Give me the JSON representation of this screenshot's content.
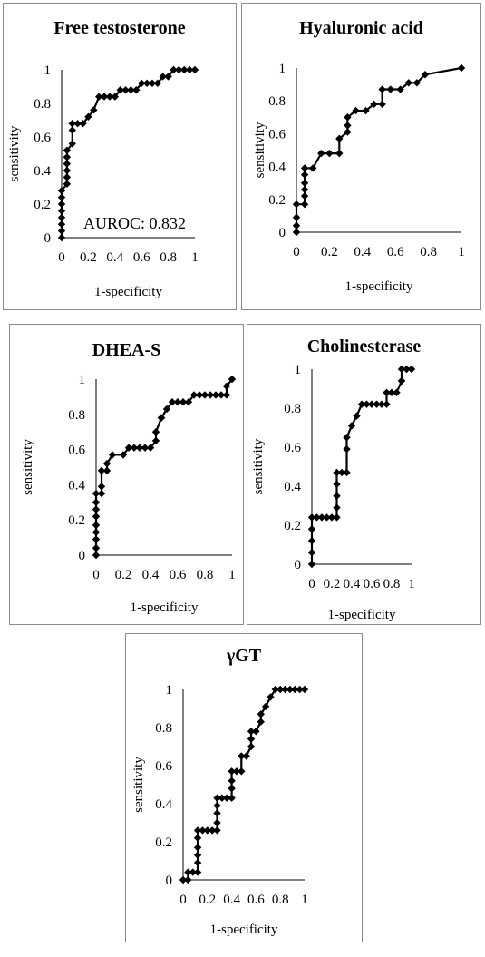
{
  "chart_data": [
    {
      "type": "line",
      "title": "Free testosterone",
      "xlabel": "1-specificity",
      "ylabel": "sensitivity",
      "xlim": [
        0,
        1
      ],
      "ylim": [
        0,
        1
      ],
      "xticks": [
        "0",
        "0.2",
        "0.4",
        "0.6",
        "0.8",
        "1"
      ],
      "yticks": [
        "0",
        "0.2",
        "0.4",
        "0.6",
        "0.8",
        "1"
      ],
      "annotation": "AUROC: 0.832",
      "grid": false,
      "series": [
        {
          "x": [
            0,
            0,
            0,
            0,
            0,
            0,
            0,
            0,
            0.04,
            0.04,
            0.04,
            0.04,
            0.04,
            0.04,
            0.04,
            0.08,
            0.08,
            0.08,
            0.12,
            0.16,
            0.2,
            0.24,
            0.28,
            0.32,
            0.36,
            0.4,
            0.44,
            0.48,
            0.52,
            0.56,
            0.6,
            0.64,
            0.68,
            0.72,
            0.76,
            0.8,
            0.84,
            0.88,
            0.92,
            0.96,
            1.0
          ],
          "y": [
            0,
            0.04,
            0.08,
            0.12,
            0.16,
            0.2,
            0.24,
            0.28,
            0.32,
            0.36,
            0.4,
            0.44,
            0.48,
            0.52,
            0.52,
            0.56,
            0.64,
            0.68,
            0.68,
            0.68,
            0.72,
            0.76,
            0.84,
            0.84,
            0.84,
            0.84,
            0.88,
            0.88,
            0.88,
            0.88,
            0.92,
            0.92,
            0.92,
            0.92,
            0.96,
            0.96,
            1.0,
            1.0,
            1.0,
            1.0,
            1.0
          ]
        }
      ]
    },
    {
      "type": "line",
      "title": "Hyaluronic acid",
      "xlabel": "1-specificity",
      "ylabel": "sensitivity",
      "xlim": [
        0,
        1
      ],
      "ylim": [
        0,
        1
      ],
      "xticks": [
        "0",
        "0.2",
        "0.4",
        "0.6",
        "0.8",
        "1"
      ],
      "yticks": [
        "0",
        "0.2",
        "0.4",
        "0.6",
        "0.8",
        "1"
      ],
      "grid": false,
      "series": [
        {
          "x": [
            0,
            0,
            0,
            0,
            0.05,
            0.05,
            0.05,
            0.05,
            0.05,
            0.05,
            0.1,
            0.15,
            0.2,
            0.26,
            0.26,
            0.31,
            0.31,
            0.31,
            0.36,
            0.42,
            0.47,
            0.52,
            0.52,
            0.57,
            0.63,
            0.68,
            0.73,
            0.78,
            1.0
          ],
          "y": [
            0,
            0.04,
            0.09,
            0.17,
            0.17,
            0.22,
            0.26,
            0.3,
            0.35,
            0.39,
            0.39,
            0.48,
            0.48,
            0.48,
            0.57,
            0.61,
            0.65,
            0.7,
            0.74,
            0.74,
            0.78,
            0.78,
            0.87,
            0.87,
            0.87,
            0.91,
            0.91,
            0.96,
            1.0
          ]
        }
      ]
    },
    {
      "type": "line",
      "title": "DHEA-S",
      "xlabel": "1-specificity",
      "ylabel": "sensitivity",
      "xlim": [
        0,
        1
      ],
      "ylim": [
        0,
        1
      ],
      "xticks": [
        "0",
        "0.2",
        "0.4",
        "0.6",
        "0.8",
        "1"
      ],
      "yticks": [
        "0",
        "0.2",
        "0.4",
        "0.6",
        "0.8",
        "1"
      ],
      "grid": false,
      "series": [
        {
          "x": [
            0,
            0,
            0,
            0,
            0,
            0,
            0,
            0,
            0,
            0.04,
            0.04,
            0.04,
            0.08,
            0.08,
            0.12,
            0.2,
            0.24,
            0.28,
            0.32,
            0.36,
            0.4,
            0.44,
            0.44,
            0.48,
            0.48,
            0.52,
            0.56,
            0.6,
            0.64,
            0.68,
            0.72,
            0.76,
            0.8,
            0.84,
            0.88,
            0.92,
            0.96,
            0.96,
            1.0
          ],
          "y": [
            0,
            0.04,
            0.09,
            0.13,
            0.17,
            0.22,
            0.26,
            0.3,
            0.35,
            0.35,
            0.39,
            0.48,
            0.48,
            0.52,
            0.57,
            0.57,
            0.61,
            0.61,
            0.61,
            0.61,
            0.61,
            0.65,
            0.7,
            0.78,
            0.78,
            0.83,
            0.87,
            0.87,
            0.87,
            0.87,
            0.91,
            0.91,
            0.91,
            0.91,
            0.91,
            0.91,
            0.91,
            0.96,
            1.0
          ]
        }
      ]
    },
    {
      "type": "line",
      "title": "Cholinesterase",
      "xlabel": "1-specificity",
      "ylabel": "sensitivity",
      "xlim": [
        0,
        1
      ],
      "ylim": [
        0,
        1
      ],
      "xticks": [
        "0",
        "0.2",
        "0.4",
        "0.6",
        "0.8",
        "1"
      ],
      "yticks": [
        "0",
        "0.2",
        "0.4",
        "0.6",
        "0.8",
        "1"
      ],
      "grid": false,
      "series": [
        {
          "x": [
            0,
            0,
            0,
            0,
            0,
            0.05,
            0.1,
            0.15,
            0.2,
            0.25,
            0.25,
            0.25,
            0.25,
            0.25,
            0.3,
            0.35,
            0.35,
            0.35,
            0.4,
            0.45,
            0.5,
            0.55,
            0.6,
            0.65,
            0.7,
            0.75,
            0.75,
            0.8,
            0.85,
            0.9,
            0.9,
            0.9,
            0.95,
            1.0
          ],
          "y": [
            0,
            0.06,
            0.12,
            0.18,
            0.24,
            0.24,
            0.24,
            0.24,
            0.24,
            0.24,
            0.29,
            0.35,
            0.41,
            0.47,
            0.47,
            0.47,
            0.59,
            0.65,
            0.71,
            0.76,
            0.82,
            0.82,
            0.82,
            0.82,
            0.82,
            0.82,
            0.88,
            0.88,
            0.88,
            0.94,
            0.94,
            1.0,
            1.0,
            1.0
          ]
        }
      ]
    },
    {
      "type": "line",
      "title": "γGT",
      "xlabel": "1-specificity",
      "ylabel": "sensitivity",
      "xlim": [
        0,
        1
      ],
      "ylim": [
        0,
        1
      ],
      "xticks": [
        "0",
        "0.2",
        "0.4",
        "0.6",
        "0.8",
        "1"
      ],
      "yticks": [
        "0",
        "0.2",
        "0.4",
        "0.6",
        "0.8",
        "1"
      ],
      "grid": false,
      "series": [
        {
          "x": [
            0,
            0.04,
            0.04,
            0.08,
            0.12,
            0.12,
            0.12,
            0.12,
            0.12,
            0.12,
            0.16,
            0.2,
            0.24,
            0.28,
            0.28,
            0.28,
            0.28,
            0.28,
            0.32,
            0.36,
            0.4,
            0.4,
            0.4,
            0.4,
            0.44,
            0.48,
            0.48,
            0.52,
            0.56,
            0.56,
            0.56,
            0.6,
            0.64,
            0.64,
            0.68,
            0.72,
            0.76,
            0.8,
            0.84,
            0.88,
            0.92,
            0.96,
            1.0
          ],
          "y": [
            0,
            0,
            0.04,
            0.04,
            0.04,
            0.09,
            0.13,
            0.17,
            0.22,
            0.26,
            0.26,
            0.26,
            0.26,
            0.26,
            0.3,
            0.35,
            0.39,
            0.43,
            0.43,
            0.43,
            0.43,
            0.48,
            0.52,
            0.57,
            0.57,
            0.57,
            0.65,
            0.65,
            0.7,
            0.74,
            0.78,
            0.78,
            0.83,
            0.87,
            0.91,
            0.96,
            1.0,
            1.0,
            1.0,
            1.0,
            1.0,
            1.0,
            1.0
          ]
        }
      ]
    }
  ]
}
